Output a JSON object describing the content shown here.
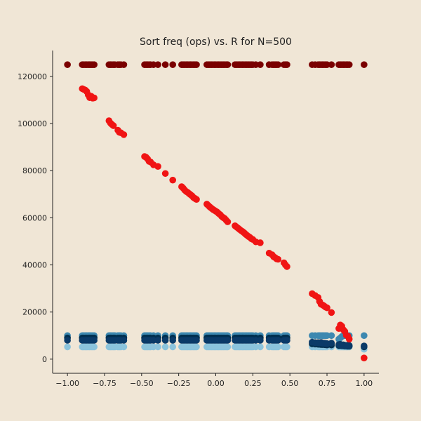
{
  "chart_data": {
    "type": "scatter",
    "title": "Sort freq (ops) vs. R for N=500",
    "xlabel": "",
    "ylabel": "",
    "xlim": [
      -1.1,
      1.1
    ],
    "ylim": [
      -6000,
      131000
    ],
    "x_ticks": [
      -1.0,
      -0.75,
      -0.5,
      -0.25,
      0.0,
      0.25,
      0.5,
      0.75,
      1.0
    ],
    "x_tick_labels": [
      "−1.00",
      "−0.75",
      "−0.50",
      "−0.25",
      "0.00",
      "0.25",
      "0.50",
      "0.75",
      "1.00"
    ],
    "y_ticks": [
      0,
      20000,
      40000,
      60000,
      80000,
      100000,
      120000
    ],
    "y_tick_labels": [
      "0",
      "20000",
      "40000",
      "60000",
      "80000",
      "100000",
      "120000"
    ],
    "grid": false,
    "legend": "none",
    "x_groups": [
      -1.0,
      -0.9,
      -0.89,
      -0.88,
      -0.87,
      -0.86,
      -0.85,
      -0.84,
      -0.83,
      -0.82,
      -0.72,
      -0.71,
      -0.7,
      -0.69,
      -0.68,
      -0.66,
      -0.65,
      -0.64,
      -0.62,
      -0.48,
      -0.47,
      -0.46,
      -0.45,
      -0.44,
      -0.42,
      -0.39,
      -0.34,
      -0.29,
      -0.23,
      -0.22,
      -0.21,
      -0.2,
      -0.19,
      -0.18,
      -0.17,
      -0.16,
      -0.15,
      -0.14,
      -0.13,
      -0.06,
      -0.05,
      -0.04,
      -0.03,
      -0.02,
      -0.01,
      0.0,
      0.01,
      0.02,
      0.03,
      0.04,
      0.05,
      0.06,
      0.07,
      0.08,
      0.13,
      0.14,
      0.15,
      0.16,
      0.17,
      0.18,
      0.19,
      0.2,
      0.21,
      0.22,
      0.23,
      0.24,
      0.25,
      0.27,
      0.3,
      0.36,
      0.38,
      0.39,
      0.4,
      0.41,
      0.42,
      0.46,
      0.47,
      0.48,
      0.65,
      0.67,
      0.69,
      0.7,
      0.71,
      0.72,
      0.73,
      0.74,
      0.75,
      0.78,
      0.83,
      0.84,
      0.85,
      0.86,
      0.87,
      0.88,
      0.89,
      0.9,
      1.0
    ],
    "series": [
      {
        "color": "#7a0000",
        "points": "top_constant",
        "y_value": 125000
      },
      {
        "color": "#f01414",
        "points_xy": [
          [
            -0.9,
            114800
          ],
          [
            -0.89,
            114500
          ],
          [
            -0.88,
            114200
          ],
          [
            -0.87,
            113600
          ],
          [
            -0.86,
            112200
          ],
          [
            -0.85,
            111000
          ],
          [
            -0.84,
            111600
          ],
          [
            -0.83,
            110800
          ],
          [
            -0.82,
            110900
          ],
          [
            -0.72,
            101200
          ],
          [
            -0.71,
            100200
          ],
          [
            -0.7,
            99600
          ],
          [
            -0.69,
            99100
          ],
          [
            -0.66,
            97200
          ],
          [
            -0.65,
            96300
          ],
          [
            -0.64,
            96100
          ],
          [
            -0.62,
            95300
          ],
          [
            -0.48,
            86000
          ],
          [
            -0.47,
            85700
          ],
          [
            -0.46,
            85000
          ],
          [
            -0.45,
            84000
          ],
          [
            -0.44,
            83700
          ],
          [
            -0.42,
            82500
          ],
          [
            -0.39,
            81800
          ],
          [
            -0.34,
            78800
          ],
          [
            -0.29,
            76000
          ],
          [
            -0.23,
            73200
          ],
          [
            -0.22,
            72600
          ],
          [
            -0.21,
            71800
          ],
          [
            -0.2,
            71200
          ],
          [
            -0.19,
            70800
          ],
          [
            -0.18,
            70300
          ],
          [
            -0.17,
            69800
          ],
          [
            -0.16,
            69300
          ],
          [
            -0.15,
            68600
          ],
          [
            -0.14,
            68200
          ],
          [
            -0.13,
            67800
          ],
          [
            -0.06,
            65800
          ],
          [
            -0.05,
            65200
          ],
          [
            -0.04,
            64600
          ],
          [
            -0.03,
            64100
          ],
          [
            -0.02,
            63600
          ],
          [
            -0.01,
            63200
          ],
          [
            0.0,
            62800
          ],
          [
            0.01,
            62400
          ],
          [
            0.02,
            61800
          ],
          [
            0.03,
            61300
          ],
          [
            0.04,
            60600
          ],
          [
            0.05,
            60100
          ],
          [
            0.06,
            59700
          ],
          [
            0.07,
            59000
          ],
          [
            0.08,
            58300
          ],
          [
            0.13,
            56600
          ],
          [
            0.14,
            56100
          ],
          [
            0.15,
            55600
          ],
          [
            0.16,
            55100
          ],
          [
            0.17,
            54600
          ],
          [
            0.18,
            54200
          ],
          [
            0.19,
            53700
          ],
          [
            0.2,
            53100
          ],
          [
            0.21,
            52600
          ],
          [
            0.22,
            52100
          ],
          [
            0.23,
            51700
          ],
          [
            0.24,
            51100
          ],
          [
            0.25,
            50800
          ],
          [
            0.27,
            49800
          ],
          [
            0.3,
            49400
          ],
          [
            0.36,
            45000
          ],
          [
            0.38,
            44300
          ],
          [
            0.39,
            43500
          ],
          [
            0.4,
            43100
          ],
          [
            0.41,
            42600
          ],
          [
            0.42,
            42400
          ],
          [
            0.46,
            40900
          ],
          [
            0.47,
            40000
          ],
          [
            0.48,
            39300
          ],
          [
            0.65,
            27800
          ],
          [
            0.67,
            27000
          ],
          [
            0.69,
            26200
          ],
          [
            0.7,
            24500
          ],
          [
            0.71,
            23300
          ],
          [
            0.72,
            23000
          ],
          [
            0.73,
            22600
          ],
          [
            0.74,
            22100
          ],
          [
            0.75,
            21800
          ],
          [
            0.78,
            19800
          ],
          [
            0.83,
            13000
          ],
          [
            0.84,
            14500
          ],
          [
            0.85,
            14000
          ],
          [
            0.86,
            12500
          ],
          [
            0.87,
            11800
          ],
          [
            0.88,
            10200
          ],
          [
            0.89,
            9800
          ],
          [
            0.9,
            8500
          ],
          [
            1.0,
            500
          ]
        ]
      },
      {
        "color": "#3d88b0",
        "points": "band",
        "y_value": 10000,
        "y_value_right": [
          [
            0.83,
            8500
          ],
          [
            0.84,
            9000
          ],
          [
            0.85,
            9600
          ],
          [
            0.86,
            10000
          ],
          [
            0.87,
            10000
          ],
          [
            0.88,
            10000
          ],
          [
            0.89,
            10000
          ],
          [
            0.9,
            10000
          ],
          [
            1.0,
            10000
          ]
        ]
      },
      {
        "color": "#0a3a68",
        "points": "band",
        "y_value": 8000,
        "y_value_right": [
          [
            0.65,
            7200
          ],
          [
            0.67,
            7000
          ],
          [
            0.69,
            7000
          ],
          [
            0.7,
            6900
          ],
          [
            0.71,
            7100
          ],
          [
            0.72,
            6800
          ],
          [
            0.73,
            6800
          ],
          [
            0.74,
            6700
          ],
          [
            0.75,
            6600
          ],
          [
            0.78,
            6800
          ],
          [
            0.83,
            6200
          ],
          [
            0.84,
            6300
          ],
          [
            0.85,
            5900
          ],
          [
            0.86,
            6100
          ],
          [
            0.87,
            5900
          ],
          [
            0.88,
            5800
          ],
          [
            0.89,
            5900
          ],
          [
            0.9,
            5800
          ],
          [
            1.0,
            5600
          ]
        ]
      },
      {
        "color": "#8bc3dc",
        "points": "band",
        "y_value": 5200,
        "y_value_right": [
          [
            1.0,
            4200
          ]
        ]
      },
      {
        "color": "#003050",
        "points": "band",
        "y_value": 9000,
        "y_value_right": [
          [
            0.65,
            6500
          ],
          [
            0.67,
            6400
          ],
          [
            0.69,
            6300
          ],
          [
            0.7,
            6300
          ],
          [
            0.71,
            6200
          ],
          [
            0.72,
            6200
          ],
          [
            0.73,
            6200
          ],
          [
            0.74,
            6100
          ],
          [
            0.75,
            6000
          ],
          [
            0.78,
            6000
          ],
          [
            0.83,
            5800
          ],
          [
            0.84,
            5800
          ],
          [
            0.85,
            5700
          ],
          [
            0.86,
            5700
          ],
          [
            0.87,
            5600
          ],
          [
            0.88,
            5600
          ],
          [
            0.89,
            5500
          ],
          [
            0.9,
            5500
          ],
          [
            1.0,
            5200
          ]
        ]
      }
    ]
  }
}
